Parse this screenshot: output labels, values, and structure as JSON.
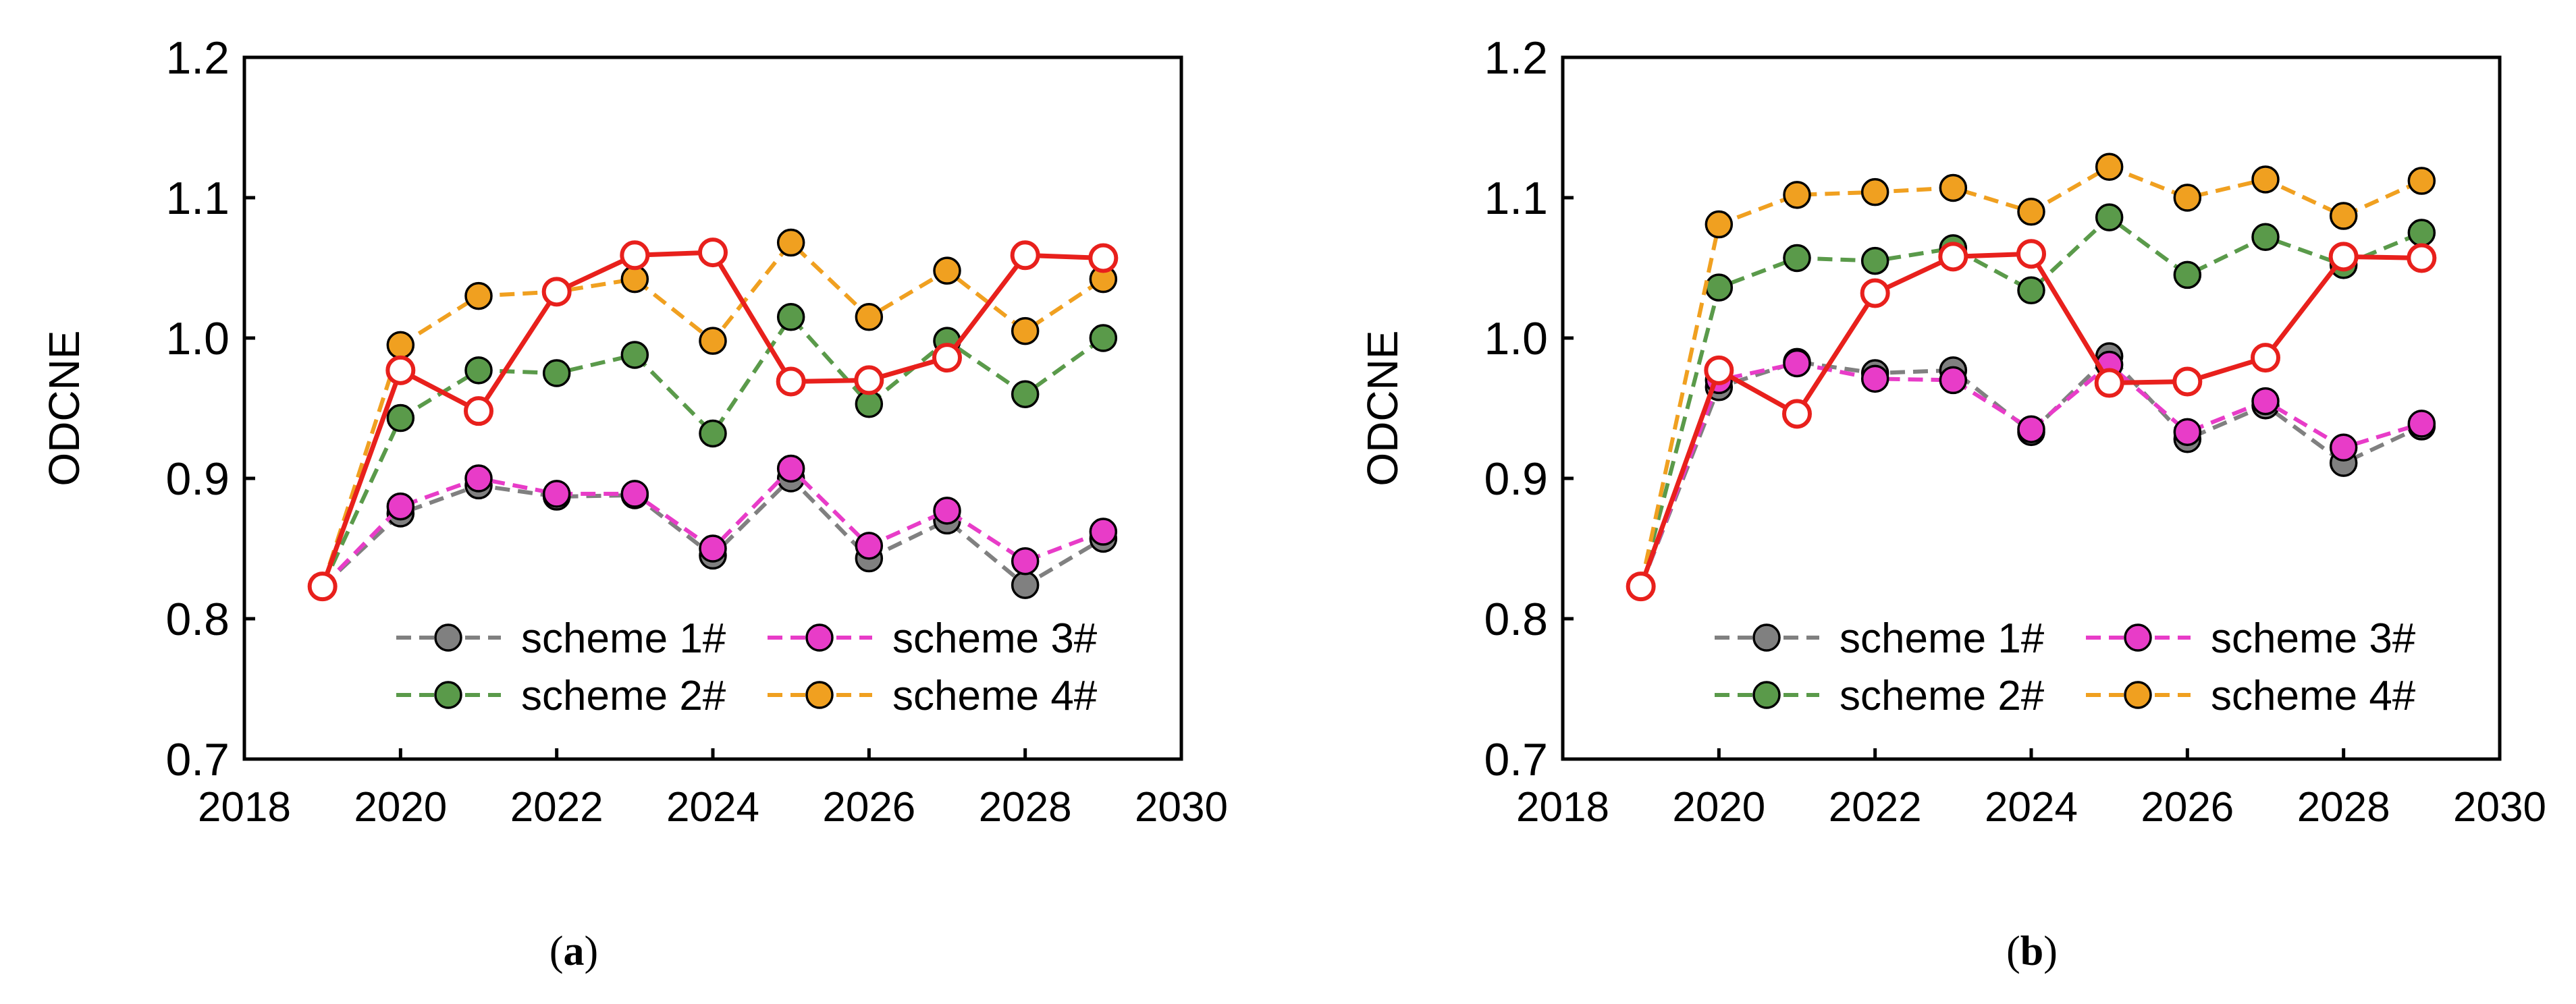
{
  "chart_data": [
    {
      "type": "line",
      "panel_label": "a",
      "ylabel": "ODCNE",
      "xlim": [
        2018,
        2030
      ],
      "ylim": [
        0.7,
        1.2
      ],
      "xticks": [
        2018,
        2020,
        2022,
        2024,
        2026,
        2028,
        2030
      ],
      "yticks": [
        "0.7",
        "0.8",
        "0.9",
        "1.0",
        "1.1",
        "1.2"
      ],
      "grid": false,
      "legend_position": "bottom-right",
      "x": [
        2019,
        2020,
        2021,
        2022,
        2023,
        2024,
        2025,
        2026,
        2027,
        2028,
        2029
      ],
      "series": [
        {
          "name": "scheme 1#",
          "color": "#808080",
          "dashed": true,
          "marker": "filled-circle",
          "in_legend": true,
          "values": [
            0.823,
            0.875,
            0.895,
            0.887,
            0.888,
            0.845,
            0.9,
            0.843,
            0.87,
            0.824,
            0.857
          ]
        },
        {
          "name": "scheme 2#",
          "color": "#5a9a4a",
          "dashed": true,
          "marker": "filled-circle",
          "in_legend": true,
          "values": [
            0.823,
            0.943,
            0.977,
            0.975,
            0.988,
            0.932,
            1.015,
            0.953,
            0.998,
            0.96,
            1.0
          ]
        },
        {
          "name": "scheme 3#",
          "color": "#e83cc8",
          "dashed": true,
          "marker": "filled-circle",
          "in_legend": true,
          "values": [
            0.823,
            0.88,
            0.9,
            0.889,
            0.889,
            0.85,
            0.907,
            0.852,
            0.877,
            0.841,
            0.862
          ]
        },
        {
          "name": "scheme 4#",
          "color": "#f0a020",
          "dashed": true,
          "marker": "filled-circle",
          "in_legend": true,
          "values": [
            0.823,
            0.995,
            1.03,
            1.033,
            1.042,
            0.998,
            1.068,
            1.015,
            1.048,
            1.005,
            1.042
          ]
        },
        {
          "name": "",
          "color": "#e8201c",
          "dashed": false,
          "marker": "open-circle",
          "in_legend": false,
          "values": [
            0.823,
            0.977,
            0.948,
            1.033,
            1.059,
            1.061,
            0.969,
            0.97,
            0.986,
            1.059,
            1.057
          ]
        }
      ]
    },
    {
      "type": "line",
      "panel_label": "b",
      "ylabel": "ODCNE",
      "xlim": [
        2018,
        2030
      ],
      "ylim": [
        0.7,
        1.2
      ],
      "xticks": [
        2018,
        2020,
        2022,
        2024,
        2026,
        2028,
        2030
      ],
      "yticks": [
        "0.7",
        "0.8",
        "0.9",
        "1.0",
        "1.1",
        "1.2"
      ],
      "grid": false,
      "legend_position": "bottom-right",
      "x": [
        2019,
        2020,
        2021,
        2022,
        2023,
        2024,
        2025,
        2026,
        2027,
        2028,
        2029
      ],
      "series": [
        {
          "name": "scheme 1#",
          "color": "#808080",
          "dashed": true,
          "marker": "filled-circle",
          "in_legend": true,
          "values": [
            0.823,
            0.965,
            0.983,
            0.975,
            0.977,
            0.933,
            0.987,
            0.928,
            0.952,
            0.911,
            0.937
          ]
        },
        {
          "name": "scheme 2#",
          "color": "#5a9a4a",
          "dashed": true,
          "marker": "filled-circle",
          "in_legend": true,
          "values": [
            0.823,
            1.036,
            1.057,
            1.055,
            1.064,
            1.034,
            1.086,
            1.045,
            1.072,
            1.052,
            1.075
          ]
        },
        {
          "name": "scheme 3#",
          "color": "#e83cc8",
          "dashed": true,
          "marker": "filled-circle",
          "in_legend": true,
          "values": [
            0.823,
            0.97,
            0.982,
            0.971,
            0.97,
            0.935,
            0.981,
            0.933,
            0.955,
            0.922,
            0.939
          ]
        },
        {
          "name": "scheme 4#",
          "color": "#f0a020",
          "dashed": true,
          "marker": "filled-circle",
          "in_legend": true,
          "values": [
            0.823,
            1.081,
            1.102,
            1.104,
            1.107,
            1.09,
            1.122,
            1.1,
            1.113,
            1.087,
            1.112
          ]
        },
        {
          "name": "",
          "color": "#e8201c",
          "dashed": false,
          "marker": "open-circle",
          "in_legend": false,
          "values": [
            0.823,
            0.977,
            0.946,
            1.032,
            1.058,
            1.06,
            0.968,
            0.969,
            0.986,
            1.058,
            1.057
          ]
        }
      ]
    }
  ]
}
